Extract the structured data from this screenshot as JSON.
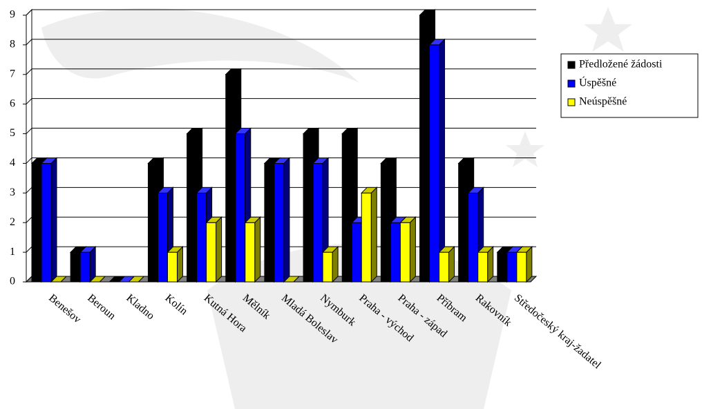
{
  "chart_data": {
    "type": "bar3d",
    "categories": [
      "Benešov",
      "Beroun",
      "Kladno",
      "Kolín",
      "Kutná Hora",
      "Mělník",
      "Mladá Boleslav",
      "Nymburk",
      "Praha - východ",
      "Praha - západ",
      "Příbram",
      "Rakovník",
      "Středočeský kraj-žadatel"
    ],
    "series": [
      {
        "name": "Předložené žádosti",
        "color": "#000000",
        "values": [
          4,
          1,
          0,
          4,
          5,
          7,
          4,
          5,
          5,
          4,
          9,
          4,
          1
        ]
      },
      {
        "name": "Úspěšné",
        "color": "#0000ff",
        "values": [
          4,
          1,
          0,
          3,
          3,
          5,
          4,
          4,
          2,
          2,
          8,
          3,
          1
        ]
      },
      {
        "name": "Neúspěšné",
        "color": "#ffff00",
        "values": [
          0,
          0,
          0,
          1,
          2,
          2,
          0,
          1,
          3,
          2,
          1,
          1,
          1
        ]
      }
    ],
    "ylim": [
      0,
      9
    ],
    "yticks": [
      0,
      1,
      2,
      3,
      4,
      5,
      6,
      7,
      8,
      9
    ],
    "grid": true,
    "legend": "right"
  }
}
